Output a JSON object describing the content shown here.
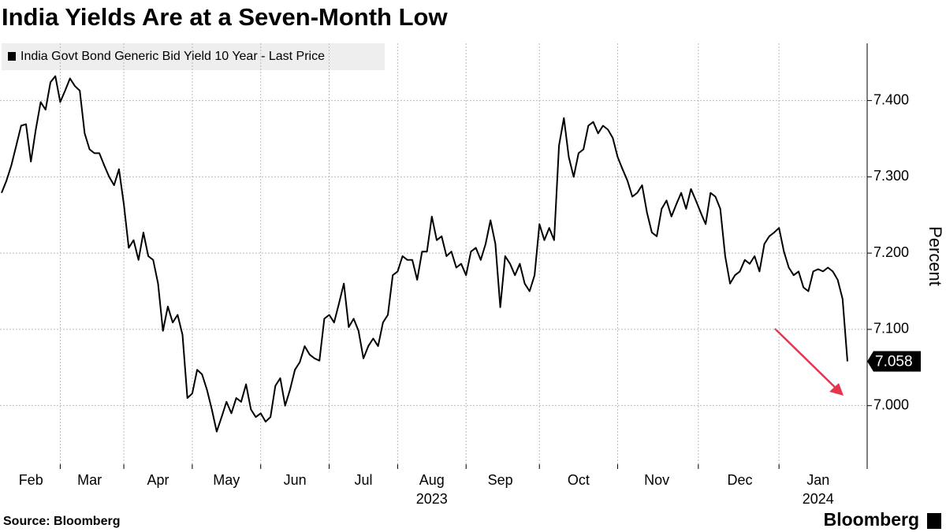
{
  "chart_data": {
    "type": "line",
    "title": "India Yields Are at a Seven-Month Low",
    "y_label": "Percent",
    "source": "Source: Bloomberg",
    "brand": "Bloomberg",
    "x_group_labels": [
      "2023",
      "2024"
    ],
    "categories": [
      null,
      null,
      null,
      null,
      null,
      null,
      "Feb",
      null,
      null,
      null,
      null,
      null,
      null,
      null,
      null,
      null,
      null,
      null,
      "Mar",
      null,
      null,
      null,
      null,
      null,
      null,
      null,
      null,
      null,
      null,
      null,
      null,
      null,
      "Apr",
      null,
      null,
      null,
      null,
      null,
      null,
      null,
      null,
      null,
      null,
      null,
      null,
      null,
      "May",
      null,
      null,
      null,
      null,
      null,
      null,
      null,
      null,
      null,
      null,
      null,
      null,
      null,
      "Jun",
      null,
      null,
      null,
      null,
      null,
      null,
      null,
      null,
      null,
      null,
      null,
      null,
      null,
      "Jul",
      null,
      null,
      null,
      null,
      null,
      null,
      null,
      null,
      null,
      null,
      null,
      null,
      null,
      "Aug",
      null,
      null,
      null,
      null,
      null,
      null,
      null,
      null,
      null,
      null,
      null,
      null,
      null,
      "Sep",
      null,
      null,
      null,
      null,
      null,
      null,
      null,
      null,
      null,
      null,
      null,
      null,
      null,
      null,
      null,
      "Oct",
      null,
      null,
      null,
      null,
      null,
      null,
      null,
      null,
      null,
      null,
      null,
      null,
      null,
      null,
      null,
      "Nov",
      null,
      null,
      null,
      null,
      null,
      null,
      null,
      null,
      null,
      null,
      null,
      null,
      null,
      null,
      null,
      null,
      "Dec",
      null,
      null,
      null,
      null,
      null,
      null,
      null,
      null,
      null,
      null,
      null,
      null,
      null,
      null,
      null,
      "Jan",
      null,
      null,
      null,
      null,
      null,
      null
    ],
    "series": [
      {
        "name": "India Govt Bond Generic Bid Yield 10 Year - Last Price",
        "color": "#000000",
        "values": [
          7.279,
          7.295,
          7.315,
          7.341,
          7.367,
          7.369,
          7.32,
          7.362,
          7.398,
          7.388,
          7.424,
          7.432,
          7.398,
          7.413,
          7.429,
          7.419,
          7.413,
          7.357,
          7.336,
          7.331,
          7.331,
          7.315,
          7.3,
          7.289,
          7.31,
          7.264,
          7.207,
          7.217,
          7.191,
          7.227,
          7.196,
          7.191,
          7.16,
          7.098,
          7.13,
          7.109,
          7.119,
          7.093,
          7.01,
          7.016,
          7.047,
          7.041,
          7.021,
          6.995,
          6.966,
          6.985,
          7.005,
          6.99,
          7.01,
          7.005,
          7.028,
          6.995,
          6.985,
          6.99,
          6.979,
          6.985,
          7.026,
          7.036,
          7.0,
          7.021,
          7.047,
          7.057,
          7.078,
          7.067,
          7.062,
          7.059,
          7.114,
          7.119,
          7.109,
          7.134,
          7.16,
          7.103,
          7.114,
          7.098,
          7.062,
          7.078,
          7.088,
          7.078,
          7.109,
          7.119,
          7.171,
          7.176,
          7.196,
          7.191,
          7.191,
          7.165,
          7.202,
          7.202,
          7.248,
          7.217,
          7.222,
          7.196,
          7.202,
          7.181,
          7.186,
          7.171,
          7.202,
          7.207,
          7.191,
          7.212,
          7.243,
          7.212,
          7.129,
          7.196,
          7.186,
          7.171,
          7.186,
          7.16,
          7.15,
          7.171,
          7.238,
          7.217,
          7.233,
          7.217,
          7.341,
          7.377,
          7.326,
          7.3,
          7.331,
          7.336,
          7.367,
          7.372,
          7.357,
          7.367,
          7.362,
          7.351,
          7.326,
          7.31,
          7.295,
          7.274,
          7.279,
          7.289,
          7.253,
          7.227,
          7.222,
          7.258,
          7.269,
          7.248,
          7.264,
          7.279,
          7.258,
          7.284,
          7.269,
          7.253,
          7.238,
          7.279,
          7.274,
          7.258,
          7.196,
          7.16,
          7.171,
          7.176,
          7.191,
          7.186,
          7.196,
          7.176,
          7.212,
          7.222,
          7.227,
          7.233,
          7.202,
          7.181,
          7.171,
          7.176,
          7.155,
          7.15,
          7.176,
          7.179,
          7.176,
          7.181,
          7.176,
          7.165,
          7.14,
          7.058
        ]
      }
    ],
    "ylim": [
      6.917,
      7.475
    ],
    "yticks": [
      {
        "value": 7.0,
        "label": "7.000"
      },
      {
        "value": 7.1,
        "label": "7.100"
      },
      {
        "value": 7.2,
        "label": "7.200"
      },
      {
        "value": 7.3,
        "label": "7.300"
      },
      {
        "value": 7.4,
        "label": "7.400"
      }
    ],
    "grid": true
  }
}
